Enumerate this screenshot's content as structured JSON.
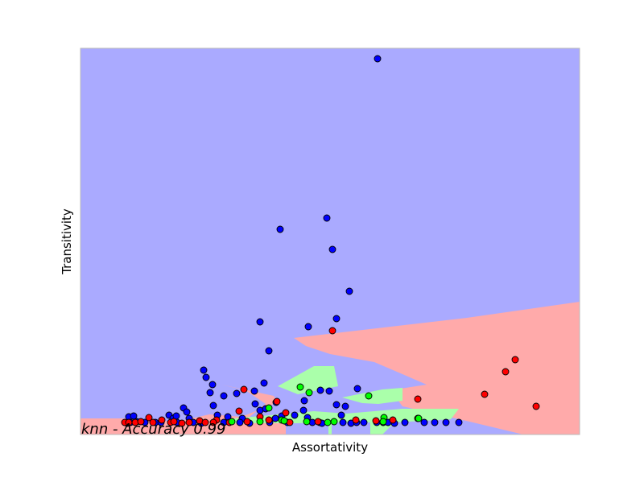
{
  "chart_data": {
    "type": "scatter",
    "title": "",
    "xlabel": "Assortativity",
    "ylabel": "Transitivity",
    "annotation": "knn - Accuracy 0.99",
    "xlim": [
      0,
      62
    ],
    "ylim": [
      0,
      48
    ],
    "grid": false,
    "legend": "none",
    "x_ticks_visible": false,
    "y_ticks_visible": false,
    "colors": {
      "background_region": "#aaaaff",
      "region_red": "#ffaaaa",
      "region_green": "#aaffaa",
      "point_blue": "#0000ff",
      "point_red": "#ff0000",
      "point_green": "#00ff00",
      "frame": "#bbbbbb"
    },
    "decision_regions": [
      {
        "class": "red",
        "polygon": [
          [
            26.5,
            12
          ],
          [
            48,
            14.5
          ],
          [
            62,
            16.5
          ],
          [
            62,
            0
          ],
          [
            55,
            0
          ],
          [
            47.5,
            1.8
          ],
          [
            40,
            3.5
          ],
          [
            38.5,
            5.5
          ],
          [
            43,
            6.2
          ],
          [
            40,
            7.5
          ],
          [
            36.5,
            9
          ],
          [
            31,
            10
          ],
          [
            28,
            11
          ]
        ]
      },
      {
        "class": "red",
        "polygon": [
          [
            17.5,
            6.2
          ],
          [
            24,
            4.8
          ],
          [
            24.5,
            4
          ],
          [
            20,
            2.2
          ],
          [
            16,
            2.5
          ],
          [
            12,
            1.6
          ],
          [
            5,
            2
          ],
          [
            0,
            2
          ],
          [
            0,
            0
          ],
          [
            25.5,
            0
          ],
          [
            25.5,
            2
          ],
          [
            21,
            2.2
          ],
          [
            23,
            3.8
          ],
          [
            20.5,
            5.5
          ]
        ]
      },
      {
        "class": "green",
        "polygon": [
          [
            24.5,
            6
          ],
          [
            29,
            8.5
          ],
          [
            31.5,
            8.5
          ],
          [
            32,
            6
          ],
          [
            29.5,
            5.5
          ],
          [
            27,
            5
          ]
        ]
      },
      {
        "class": "green",
        "polygon": [
          [
            32.5,
            4.6
          ],
          [
            37.5,
            5.6
          ],
          [
            40,
            5.8
          ],
          [
            40,
            4.2
          ],
          [
            37,
            3.8
          ],
          [
            35,
            3.9
          ]
        ]
      },
      {
        "class": "green",
        "polygon": [
          [
            18,
            1.9
          ],
          [
            29,
            2.9
          ],
          [
            33,
            2.6
          ],
          [
            40,
            3.2
          ],
          [
            47,
            3.2
          ],
          [
            46,
            1.9
          ],
          [
            39,
            1.5
          ],
          [
            37.5,
            0
          ],
          [
            36,
            0
          ],
          [
            36,
            1.5
          ],
          [
            34,
            1.5
          ],
          [
            30.5,
            1.5
          ],
          [
            27,
            1.4
          ],
          [
            18.5,
            1.4
          ]
        ]
      },
      {
        "class": "green",
        "polygon": [
          [
            30.8,
            1.5
          ],
          [
            31.2,
            1.5
          ],
          [
            31.2,
            0
          ],
          [
            30.8,
            0
          ]
        ]
      },
      {
        "class": "green",
        "polygon": [
          [
            36.2,
            1.5
          ],
          [
            36.6,
            1.5
          ],
          [
            36.6,
            0
          ],
          [
            36.2,
            0
          ]
        ]
      }
    ],
    "series": [
      {
        "name": "",
        "color": "#0000ff",
        "points": [
          [
            36.9,
            46.7
          ],
          [
            24.8,
            25.5
          ],
          [
            30.6,
            26.9
          ],
          [
            31.3,
            23.0
          ],
          [
            33.4,
            17.8
          ],
          [
            31.8,
            14.4
          ],
          [
            28.3,
            13.4
          ],
          [
            22.3,
            14.0
          ],
          [
            23.4,
            10.4
          ],
          [
            15.3,
            8.0
          ],
          [
            15.6,
            7.1
          ],
          [
            16.4,
            6.2
          ],
          [
            16.1,
            5.2
          ],
          [
            17.8,
            4.8
          ],
          [
            22.8,
            6.4
          ],
          [
            21.6,
            5.4
          ],
          [
            19.4,
            5.1
          ],
          [
            29.8,
            5.5
          ],
          [
            30.9,
            5.4
          ],
          [
            34.4,
            5.7
          ],
          [
            21.7,
            3.8
          ],
          [
            24.3,
            4.0
          ],
          [
            27.8,
            4.2
          ],
          [
            31.8,
            3.7
          ],
          [
            32.9,
            3.5
          ],
          [
            12.8,
            3.3
          ],
          [
            13.2,
            2.8
          ],
          [
            16.5,
            3.6
          ],
          [
            22.3,
            3.0
          ],
          [
            23.0,
            3.2
          ],
          [
            27.7,
            3.0
          ],
          [
            32.4,
            2.4
          ],
          [
            11.0,
            2.4
          ],
          [
            11.5,
            2.0
          ],
          [
            13.5,
            2.0
          ],
          [
            17.0,
            2.4
          ],
          [
            18.3,
            2.2
          ],
          [
            20.1,
            2.0
          ],
          [
            24.2,
            2.0
          ],
          [
            25.0,
            2.3
          ],
          [
            26.6,
            2.4
          ],
          [
            28.2,
            2.1
          ],
          [
            6.0,
            2.2
          ],
          [
            6.6,
            2.3
          ],
          [
            11.9,
            2.3
          ],
          [
            6.2,
            1.5
          ],
          [
            7.0,
            1.6
          ],
          [
            8.0,
            1.5
          ],
          [
            9.3,
            1.5
          ],
          [
            10.0,
            1.5
          ],
          [
            12.0,
            1.5
          ],
          [
            14.0,
            1.5
          ],
          [
            15.0,
            1.4
          ],
          [
            17.8,
            1.5
          ],
          [
            19.8,
            1.5
          ],
          [
            21.0,
            1.4
          ],
          [
            23.5,
            1.5
          ],
          [
            25.7,
            1.5
          ],
          [
            28.8,
            1.5
          ],
          [
            29.7,
            1.5
          ],
          [
            32.6,
            1.5
          ],
          [
            33.6,
            1.4
          ],
          [
            34.3,
            1.5
          ],
          [
            35.2,
            1.5
          ],
          [
            40.3,
            1.5
          ],
          [
            42.7,
            1.5
          ],
          [
            44.0,
            1.5
          ],
          [
            45.4,
            1.5
          ],
          [
            47.0,
            1.5
          ],
          [
            5.8,
            1.4
          ],
          [
            36.8,
            1.5
          ],
          [
            37.6,
            1.5
          ],
          [
            38.2,
            1.5
          ],
          [
            39.0,
            1.4
          ],
          [
            30.0,
            1.4
          ]
        ]
      },
      {
        "name": "",
        "color": "#ff0000",
        "points": [
          [
            31.3,
            12.9
          ],
          [
            54.0,
            9.3
          ],
          [
            52.8,
            7.8
          ],
          [
            50.2,
            5.0
          ],
          [
            56.6,
            3.5
          ],
          [
            41.9,
            4.4
          ],
          [
            20.3,
            5.6
          ],
          [
            24.4,
            4.1
          ],
          [
            25.5,
            2.7
          ],
          [
            19.7,
            2.9
          ],
          [
            22.3,
            2.2
          ],
          [
            23.4,
            1.8
          ],
          [
            8.5,
            2.1
          ],
          [
            10.1,
            1.8
          ],
          [
            11.2,
            1.5
          ],
          [
            14.8,
            1.7
          ],
          [
            16.9,
            1.8
          ],
          [
            5.5,
            1.5
          ],
          [
            6.8,
            1.5
          ],
          [
            7.5,
            1.6
          ],
          [
            9.0,
            1.5
          ],
          [
            11.6,
            1.6
          ],
          [
            12.6,
            1.4
          ],
          [
            13.5,
            1.5
          ],
          [
            15.5,
            1.5
          ],
          [
            16.5,
            1.5
          ],
          [
            20.7,
            1.6
          ],
          [
            26.0,
            1.5
          ],
          [
            29.5,
            1.6
          ],
          [
            34.2,
            1.8
          ],
          [
            36.7,
            1.7
          ],
          [
            38.8,
            1.8
          ],
          [
            41.9,
            2.0
          ],
          [
            6.0,
            1.5
          ],
          [
            18.5,
            1.5
          ]
        ]
      },
      {
        "name": "",
        "color": "#00ff00",
        "points": [
          [
            27.3,
            5.9
          ],
          [
            28.4,
            5.2
          ],
          [
            35.8,
            4.8
          ],
          [
            23.4,
            3.3
          ],
          [
            18.8,
            1.6
          ],
          [
            22.3,
            1.6
          ],
          [
            25.0,
            1.8
          ],
          [
            25.3,
            1.7
          ],
          [
            28.1,
            1.6
          ],
          [
            30.7,
            1.5
          ],
          [
            31.5,
            1.6
          ],
          [
            37.7,
            2.1
          ],
          [
            37.6,
            1.6
          ],
          [
            42.0,
            2.0
          ]
        ]
      }
    ]
  }
}
